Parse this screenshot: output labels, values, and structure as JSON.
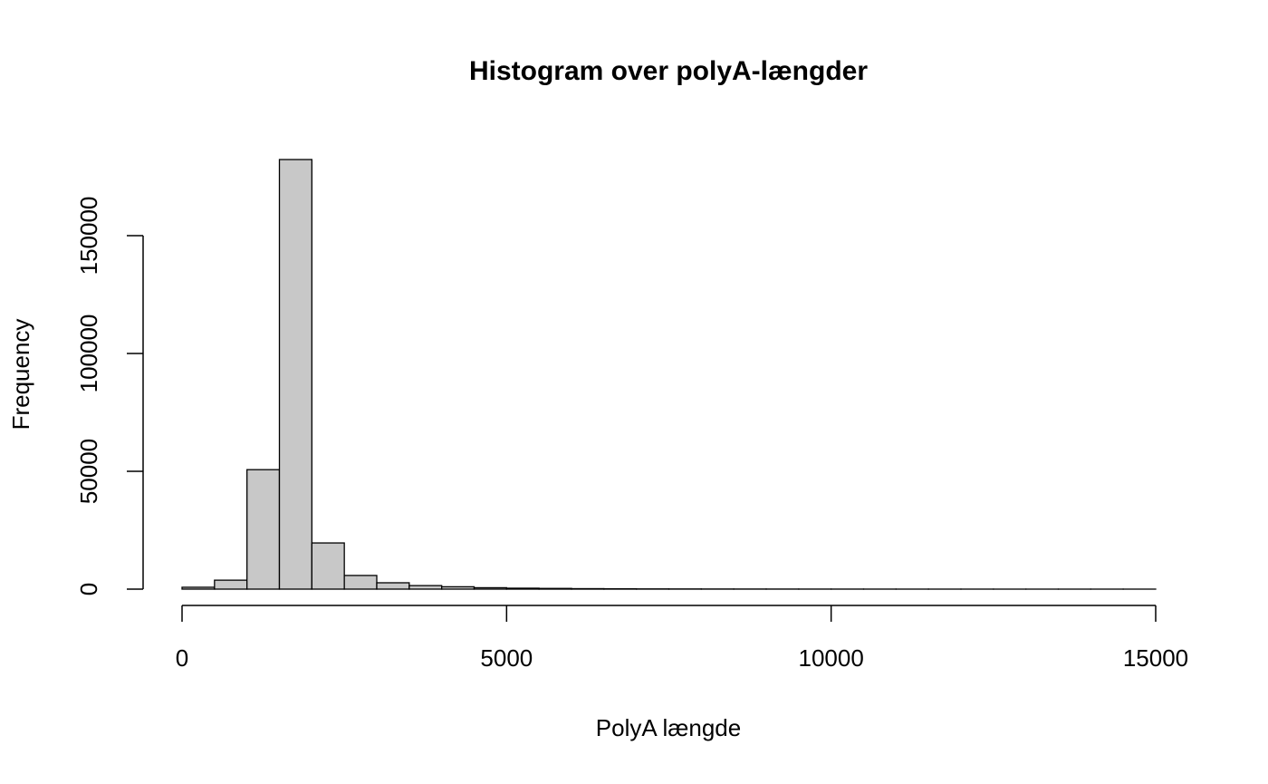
{
  "chart_data": {
    "type": "histogram",
    "title": "Histogram over polyA-længder",
    "xlabel": "PolyA længde",
    "ylabel": "Frequency",
    "bins": [
      0,
      500,
      1000,
      1500,
      2000,
      2500,
      3000,
      3500,
      4000,
      4500,
      5000,
      5500,
      6000,
      6500,
      7000,
      7500,
      8000,
      8500,
      9000,
      9500,
      10000,
      10500,
      11000,
      11500,
      12000,
      12500,
      13000,
      13500,
      14000,
      14500,
      15000
    ],
    "counts": [
      800,
      3800,
      50700,
      182300,
      19600,
      5800,
      2700,
      1500,
      1000,
      600,
      400,
      300,
      200,
      150,
      100,
      80,
      60,
      50,
      40,
      30,
      25,
      20,
      15,
      10,
      10,
      5,
      5,
      5,
      5,
      5
    ],
    "color": "#c8c8c8",
    "xlim": [
      0,
      15000
    ],
    "xticks": [
      0,
      5000,
      10000,
      15000
    ],
    "ylim": [
      0,
      190000
    ],
    "yticks": [
      0,
      50000,
      100000,
      150000
    ]
  }
}
